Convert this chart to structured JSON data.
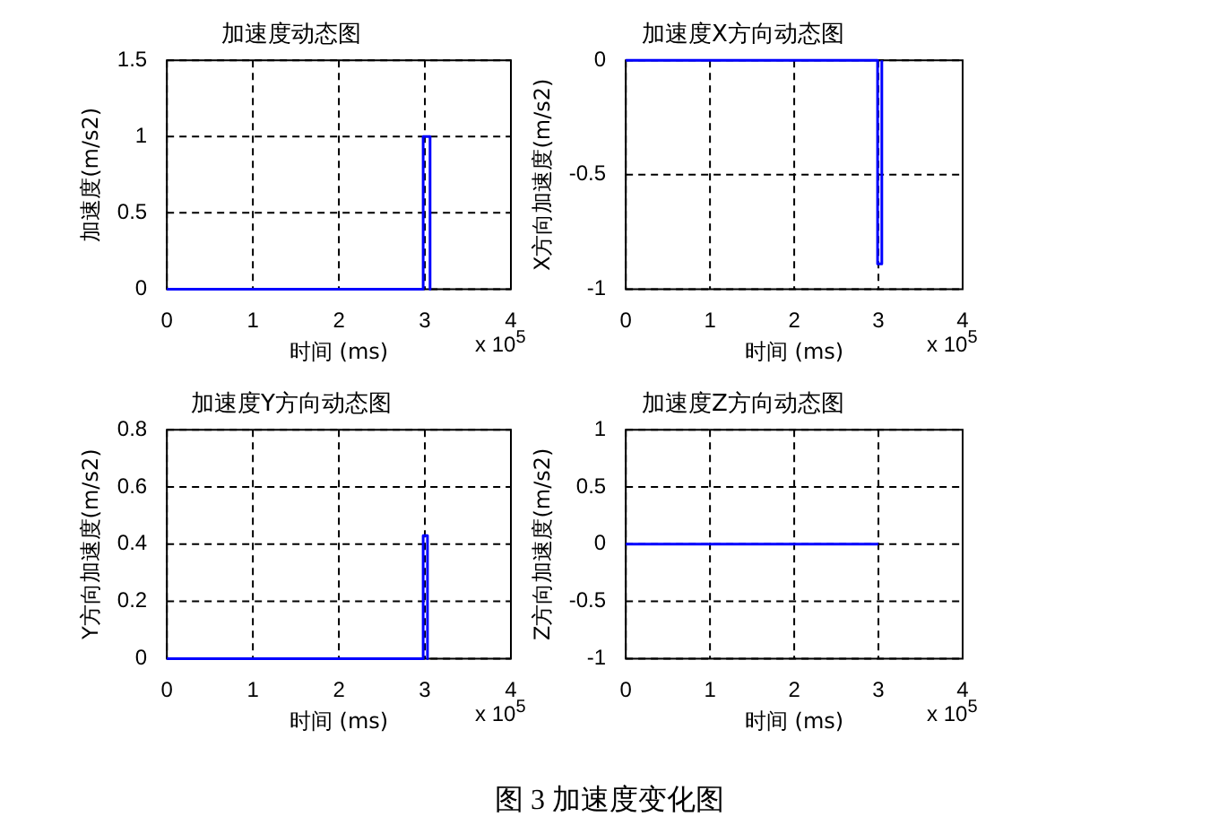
{
  "chart_data": [
    {
      "type": "line",
      "title": "加速度动态图",
      "xlabel": "时间 (ms)",
      "ylabel": "加速度(m/s2)",
      "annotations": [
        "x 10$^{5}$",
        "图 3  加速度变化图"
      ],
      "series": [
        {
          "color": "#0000ff",
          "x": [
            0,
            2.98,
            2.98,
            3.06,
            3.06
          ],
          "values": [
            0,
            0,
            1,
            1,
            0
          ]
        }
      ],
      "xlim": [
        0,
        4
      ],
      "xticks": [
        0,
        1,
        2,
        3,
        4
      ],
      "ylim": [
        0,
        1.5
      ],
      "yticks": [
        0,
        0.5,
        1,
        1.5
      ],
      "grid": true,
      "legend": false
    },
    {
      "type": "line",
      "title": "加速度X方向动态图",
      "xlabel": "时间 (ms)",
      "ylabel": "X方向加速度(m/s2)",
      "annotations": [
        "x 10$^{5}$"
      ],
      "series": [
        {
          "color": "#0000ff",
          "x": [
            0,
            2.99,
            2.99,
            3.04,
            3.04
          ],
          "values": [
            0,
            0,
            -0.89,
            -0.89,
            0
          ]
        }
      ],
      "xlim": [
        0,
        4
      ],
      "xticks": [
        0,
        1,
        2,
        3,
        4
      ],
      "ylim": [
        -1,
        0
      ],
      "yticks": [
        -1,
        -0.5,
        0
      ],
      "grid": true,
      "legend": false
    },
    {
      "type": "line",
      "title": "加速度Y方向动态图",
      "xlabel": "时间 (ms)",
      "ylabel": "Y方向加速度(m/s2)",
      "annotations": [
        "x 10$^{5}$"
      ],
      "series": [
        {
          "color": "#0000ff",
          "x": [
            0,
            2.98,
            2.98,
            3.03,
            3.03
          ],
          "values": [
            0,
            0,
            0.43,
            0.43,
            0
          ]
        }
      ],
      "xlim": [
        0,
        4
      ],
      "xticks": [
        0,
        1,
        2,
        3,
        4
      ],
      "ylim": [
        0,
        0.8
      ],
      "yticks": [
        0,
        0.2,
        0.4,
        0.6,
        0.8
      ],
      "grid": true,
      "legend": false
    },
    {
      "type": "line",
      "title": "加速度Z方向动态图",
      "xlabel": "时间 (ms)",
      "ylabel": "Z方向加速度(m/s2)",
      "annotations": [
        "x 10$^{5}$"
      ],
      "series": [
        {
          "color": "#0000ff",
          "x": [
            0,
            3
          ],
          "values": [
            0,
            0
          ]
        }
      ],
      "xlim": [
        0,
        4
      ],
      "xticks": [
        0,
        1,
        2,
        3,
        4
      ],
      "ylim": [
        -1,
        1
      ],
      "yticks": [
        -1,
        -0.5,
        0,
        0.5,
        1
      ],
      "grid": true,
      "legend": false
    }
  ]
}
